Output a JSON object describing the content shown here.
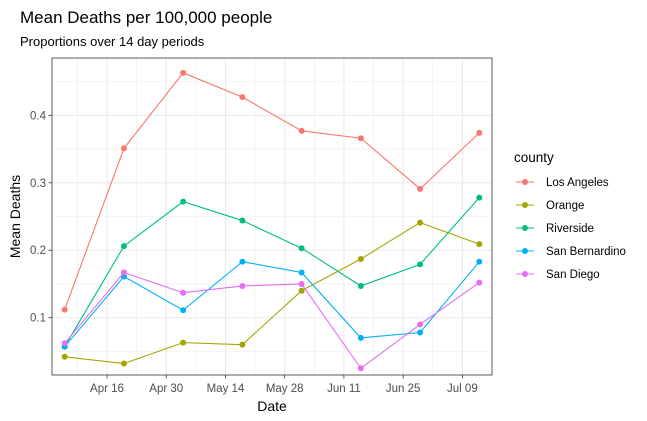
{
  "chart_data": {
    "type": "line",
    "title": "Mean Deaths per 100,000 people",
    "subtitle": "Proportions over 14 day periods",
    "xlabel": "Date",
    "ylabel": "Mean Deaths",
    "x_type": "date",
    "x": [
      "2020-04-06",
      "2020-04-20",
      "2020-05-04",
      "2020-05-18",
      "2020-06-01",
      "2020-06-15",
      "2020-06-29",
      "2020-07-13"
    ],
    "xlim": [
      "2020-04-03",
      "2020-07-16"
    ],
    "x_ticks": [
      "2020-04-16",
      "2020-04-30",
      "2020-05-14",
      "2020-05-28",
      "2020-06-11",
      "2020-06-25",
      "2020-07-09"
    ],
    "x_tick_labels": [
      "Apr 16",
      "Apr 30",
      "May 14",
      "May 28",
      "Jun 11",
      "Jun 25",
      "Jul 09"
    ],
    "ylim": [
      0.015,
      0.485
    ],
    "y_ticks": [
      0.1,
      0.2,
      0.3,
      0.4
    ],
    "y_tick_labels": [
      "0.1",
      "0.2",
      "0.3",
      "0.4"
    ],
    "grid": true,
    "legend": {
      "title": "county",
      "position": "right"
    },
    "series": [
      {
        "name": "Los Angeles",
        "color": "#F8766D",
        "values": [
          0.112,
          0.351,
          0.463,
          0.427,
          0.377,
          0.366,
          0.291,
          0.374
        ]
      },
      {
        "name": "Orange",
        "color": "#A3A500",
        "values": [
          0.042,
          0.032,
          0.063,
          0.06,
          0.14,
          0.187,
          0.241,
          0.209
        ]
      },
      {
        "name": "Riverside",
        "color": "#00BF7D",
        "values": [
          0.057,
          0.206,
          0.272,
          0.244,
          0.203,
          0.147,
          0.179,
          0.278
        ]
      },
      {
        "name": "San Bernardino",
        "color": "#00B0F6",
        "values": [
          0.057,
          0.161,
          0.111,
          0.183,
          0.167,
          0.07,
          0.078,
          0.183
        ]
      },
      {
        "name": "San Diego",
        "color": "#E76BF3",
        "values": [
          0.062,
          0.167,
          0.137,
          0.147,
          0.15,
          0.025,
          0.09,
          0.152
        ]
      }
    ]
  }
}
